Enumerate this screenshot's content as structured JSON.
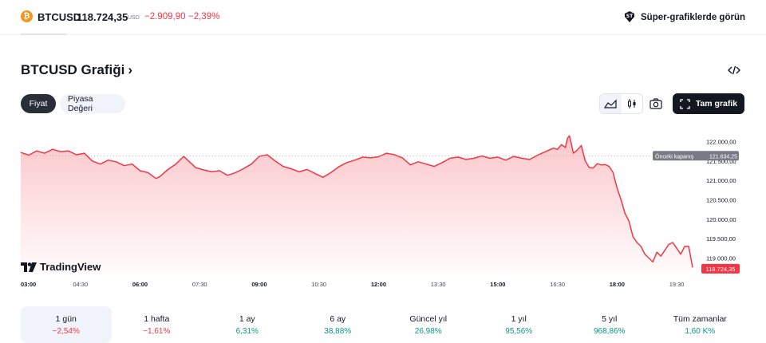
{
  "header": {
    "coin_glyph": "₿",
    "symbol": "BTCUSD",
    "price": "118.724,35",
    "currency": "USD",
    "change": "−2.909,90",
    "change_percent": "−2,39%",
    "super_link": "Süper-grafiklerde görün"
  },
  "heading": {
    "title": "BTCUSD Grafiği",
    "chevron": "›"
  },
  "tabs": [
    {
      "label": "Fiyat",
      "active": true
    },
    {
      "label": "Piyasa Değeri",
      "active": false
    }
  ],
  "toolbar": {
    "full_chart_label": "Tam grafik",
    "icons": [
      "area-chart-icon",
      "candles-icon",
      "camera-icon",
      "fullscreen-icon",
      "embed-code-icon"
    ]
  },
  "brand": "TradingView",
  "colors": {
    "line": "#f23645",
    "fill_top": "#f23645",
    "positive": "#089981",
    "negative": "#f23645",
    "dark": "#131722"
  },
  "chart_data": {
    "type": "area",
    "x_ticks": [
      "03:00",
      "04:30",
      "06:00",
      "07:30",
      "09:00",
      "10:30",
      "12:00",
      "13:30",
      "15:00",
      "16:30",
      "18:00",
      "19:30"
    ],
    "bold_ticks": [
      "03:00",
      "06:00",
      "09:00",
      "12:00",
      "15:00",
      "18:00"
    ],
    "y_ticks": [
      "122.000,00",
      "121.500,00",
      "121.000,00",
      "120.500,00",
      "120.000,00",
      "119.500,00",
      "119.000,00"
    ],
    "y_tick_values": [
      122000,
      121500,
      121000,
      120500,
      120000,
      119500,
      119000
    ],
    "ylim": [
      118620,
      122400
    ],
    "xlim": [
      3.0,
      20.1
    ],
    "previous_close": {
      "label": "Önceki kapanış",
      "value": 121634.25,
      "value_text": "121.634,25"
    },
    "last_price": {
      "value": 118724.35,
      "value_text": "118.724,35"
    },
    "series": [
      {
        "x": [
          3.0,
          3.2,
          3.4,
          3.6,
          3.8,
          4.0,
          4.2,
          4.4,
          4.6,
          4.8,
          5.0,
          5.2,
          5.4,
          5.6,
          5.8,
          6.0,
          6.2,
          6.4,
          6.5,
          6.7,
          6.9,
          7.1,
          7.2,
          7.4,
          7.6,
          7.8,
          8.0,
          8.2,
          8.4,
          8.6,
          8.8,
          9.0,
          9.2,
          9.4,
          9.6,
          9.8,
          10.0,
          10.2,
          10.4,
          10.6,
          10.8,
          11.0,
          11.2,
          11.4,
          11.6,
          11.8,
          12.0,
          12.2,
          12.4,
          12.6,
          12.8,
          13.0,
          13.2,
          13.4,
          13.6,
          13.8,
          14.0,
          14.2,
          14.4,
          14.6,
          14.8,
          15.0,
          15.2,
          15.4,
          15.6,
          15.8,
          16.0,
          16.2,
          16.4,
          16.5,
          16.6,
          16.7,
          16.75,
          16.8,
          16.85,
          16.9,
          17.0,
          17.1,
          17.2,
          17.3,
          17.4,
          17.5,
          17.6,
          17.7,
          17.8,
          17.9,
          18.0,
          18.1,
          18.2,
          18.3,
          18.4,
          18.5,
          18.6,
          18.7,
          18.8,
          18.9,
          19.0,
          19.1,
          19.2,
          19.3,
          19.4,
          19.5,
          19.6,
          19.7,
          19.8,
          19.9
        ],
        "y": [
          121720,
          121650,
          121760,
          121700,
          121800,
          121740,
          121760,
          121660,
          121700,
          121500,
          121420,
          121520,
          121480,
          121380,
          121420,
          121250,
          121200,
          121050,
          121100,
          121280,
          121420,
          121620,
          121520,
          121330,
          121270,
          121220,
          121250,
          121130,
          121200,
          121300,
          121420,
          121620,
          121660,
          121500,
          121360,
          121300,
          121220,
          121280,
          121180,
          121080,
          121200,
          121350,
          121460,
          121520,
          121600,
          121580,
          121610,
          121700,
          121660,
          121580,
          121400,
          121480,
          121420,
          121360,
          121460,
          121570,
          121600,
          121540,
          121570,
          121630,
          121570,
          121600,
          121520,
          121620,
          121570,
          121540,
          121650,
          121740,
          121830,
          121800,
          121920,
          121850,
          122080,
          122150,
          121940,
          121700,
          121780,
          121900,
          121500,
          121330,
          121320,
          121430,
          121400,
          121410,
          121360,
          121200,
          120800,
          120500,
          120150,
          119950,
          119550,
          119400,
          119300,
          119100,
          119000,
          118900,
          119150,
          119050,
          119200,
          119350,
          119400,
          119250,
          119100,
          119300,
          119300,
          118760
        ]
      }
    ]
  },
  "periods": [
    {
      "label": "1 gün",
      "value": "−2,54%",
      "sign": "neg",
      "selected": true
    },
    {
      "label": "1 hafta",
      "value": "−1,61%",
      "sign": "neg",
      "selected": false
    },
    {
      "label": "1 ay",
      "value": "6,31%",
      "sign": "pos",
      "selected": false
    },
    {
      "label": "6 ay",
      "value": "38,88%",
      "sign": "pos",
      "selected": false
    },
    {
      "label": "Güncel yıl",
      "value": "26,98%",
      "sign": "pos",
      "selected": false
    },
    {
      "label": "1 yıl",
      "value": "95,56%",
      "sign": "pos",
      "selected": false
    },
    {
      "label": "5 yıl",
      "value": "968,86%",
      "sign": "pos",
      "selected": false
    },
    {
      "label": "Tüm zamanlar",
      "value": "1,60 K%",
      "sign": "pos",
      "selected": false
    }
  ]
}
